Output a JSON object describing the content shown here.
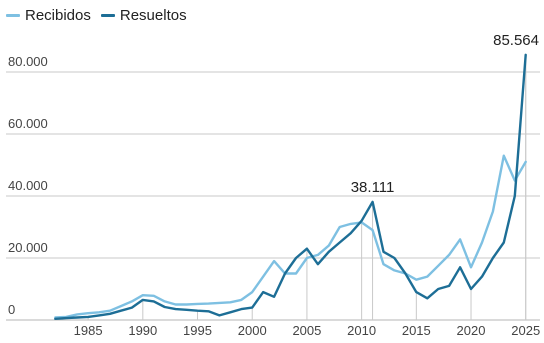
{
  "chart_data": {
    "type": "line",
    "title": "",
    "xlabel": "",
    "ylabel": "",
    "xlim": [
      1982,
      2025
    ],
    "ylim": [
      0,
      90000
    ],
    "grid": "horizontal",
    "legend_position": "top-left",
    "x_ticks": [
      "1985",
      "1990",
      "1995",
      "2000",
      "2005",
      "2010",
      "2015",
      "2020",
      "2025"
    ],
    "y_ticks": [
      "0",
      "20.000",
      "40.000",
      "60.000",
      "80.000"
    ],
    "y_tick_values": [
      0,
      20000,
      40000,
      60000,
      80000
    ],
    "x_tick_values": [
      1985,
      1990,
      1995,
      2000,
      2005,
      2010,
      2015,
      2020,
      2025
    ],
    "x": [
      1982,
      1983,
      1984,
      1985,
      1986,
      1987,
      1988,
      1989,
      1990,
      1991,
      1992,
      1993,
      1994,
      1995,
      1996,
      1997,
      1998,
      1999,
      2000,
      2001,
      2002,
      2003,
      2004,
      2005,
      2006,
      2007,
      2008,
      2009,
      2010,
      2011,
      2012,
      2013,
      2014,
      2015,
      2016,
      2017,
      2018,
      2019,
      2020,
      2021,
      2022,
      2023,
      2024,
      2025
    ],
    "series": [
      {
        "name": "Recibidos",
        "color": "#7ec0e2",
        "values": [
          800,
          1000,
          1800,
          2200,
          2500,
          3000,
          4500,
          6000,
          8000,
          7800,
          6000,
          5000,
          5000,
          5200,
          5300,
          5500,
          5700,
          6500,
          9000,
          14000,
          19000,
          15000,
          15000,
          20000,
          21000,
          24000,
          30000,
          31000,
          31500,
          29000,
          18000,
          16000,
          15000,
          13000,
          14000,
          17500,
          21000,
          26000,
          17000,
          25000,
          35000,
          53000,
          45000,
          51000
        ]
      },
      {
        "name": "Resueltos",
        "color": "#1d6e96",
        "values": [
          400,
          600,
          800,
          1000,
          1500,
          2000,
          3000,
          4000,
          6500,
          6000,
          4200,
          3500,
          3300,
          3000,
          2800,
          1500,
          2500,
          3500,
          4000,
          9000,
          7500,
          15000,
          20000,
          23000,
          18000,
          22000,
          25000,
          28000,
          32000,
          38111,
          22000,
          20000,
          15000,
          9000,
          7000,
          10000,
          11000,
          17000,
          10000,
          14000,
          20000,
          25000,
          40000,
          85564
        ]
      }
    ],
    "annotations": [
      {
        "label": "38.111",
        "x": 2011,
        "y": 38111,
        "series": "Resueltos"
      },
      {
        "label": "85.564",
        "x": 2025,
        "y": 85564,
        "series": "Resueltos"
      }
    ]
  }
}
